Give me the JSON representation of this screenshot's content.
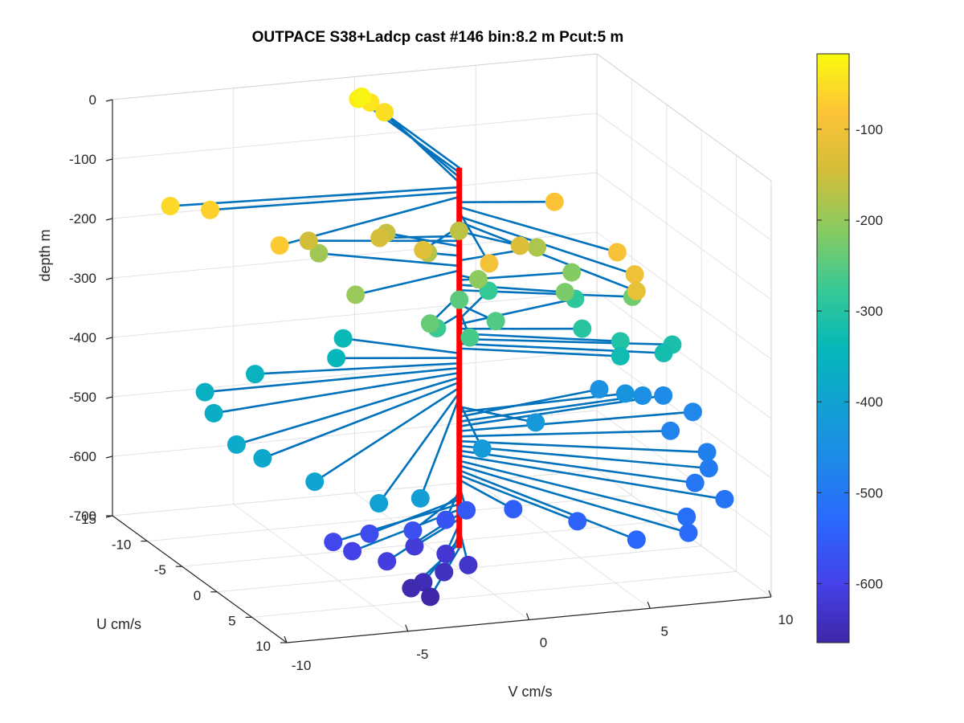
{
  "chart_data": {
    "type": "scatter",
    "title": "OUTPACE S38+Ladcp cast #146 bin:8.2 m  Pcut:5 m",
    "xlabel": "V cm/s",
    "ylabel": "U cm/s",
    "zlabel": "depth m",
    "xlim": [
      -10,
      10
    ],
    "ylim": [
      -15,
      10
    ],
    "zlim": [
      -700,
      0
    ],
    "x_ticks": [
      "-10",
      "-5",
      "0",
      "5",
      "10"
    ],
    "y_ticks": [
      "-15",
      "-10",
      "-5",
      "0",
      "5",
      "10"
    ],
    "z_ticks": [
      "0",
      "-100",
      "-200",
      "-300",
      "-400",
      "-500",
      "-600",
      "-700"
    ],
    "colorbar": {
      "ticks": [
        "-100",
        "-200",
        "-300",
        "-400",
        "-500",
        "-600"
      ],
      "range": [
        -665,
        -17
      ],
      "colormap": "parula"
    },
    "grid": true,
    "profile_line_color": "#ff0000",
    "stick_color": "#0072bd",
    "points": [
      {
        "depth": -25,
        "v": 0.0,
        "u": -14.0
      },
      {
        "depth": -33,
        "v": 0.0,
        "u": -14.5
      },
      {
        "depth": -41,
        "v": 0.5,
        "u": -14.5
      },
      {
        "depth": -50,
        "v": 0.8,
        "u": -13.5
      },
      {
        "depth": -58,
        "v": -11.5,
        "u": -1.5
      },
      {
        "depth": -66,
        "v": -10.0,
        "u": -1.0
      },
      {
        "depth": -74,
        "v": -9.0,
        "u": 5.5
      },
      {
        "depth": -83,
        "v": 3.5,
        "u": 1.5
      },
      {
        "depth": -91,
        "v": 3.5,
        "u": 10.5
      },
      {
        "depth": -99,
        "v": -1.5,
        "u": 9.5
      },
      {
        "depth": -107,
        "v": 3.5,
        "u": 13.0
      },
      {
        "depth": -116,
        "v": 3.0,
        "u": 15.0
      },
      {
        "depth": -124,
        "v": -2.5,
        "u": 3.5
      },
      {
        "depth": -132,
        "v": 1.5,
        "u": 3.5
      },
      {
        "depth": -140,
        "v": -3.0,
        "u": -1.0
      },
      {
        "depth": -148,
        "v": -5.5,
        "u": -2.5
      },
      {
        "depth": -157,
        "v": -2.0,
        "u": -3.5
      },
      {
        "depth": -165,
        "v": 1.0,
        "u": -3.5
      },
      {
        "depth": -173,
        "v": -1.0,
        "u": -1.0
      },
      {
        "depth": -181,
        "v": 3.5,
        "u": -1.0
      },
      {
        "depth": -190,
        "v": -4.5,
        "u": -4.5
      },
      {
        "depth": -198,
        "v": -5.0,
        "u": 2.5
      },
      {
        "depth": -206,
        "v": 0.5,
        "u": 1.0
      },
      {
        "depth": -214,
        "v": 4.5,
        "u": 0.5
      },
      {
        "depth": -222,
        "v": 3.5,
        "u": 3.0
      },
      {
        "depth": -231,
        "v": 6.0,
        "u": 4.0
      },
      {
        "depth": -239,
        "v": -2.5,
        "u": 4.5
      },
      {
        "depth": -247,
        "v": 0.0,
        "u": 0.0
      },
      {
        "depth": -255,
        "v": 0.5,
        "u": 3.5
      },
      {
        "depth": -264,
        "v": -1.0,
        "u": 5.0
      },
      {
        "depth": -272,
        "v": -1.5,
        "u": 2.0
      },
      {
        "depth": -280,
        "v": 2.5,
        "u": -4.5
      },
      {
        "depth": -288,
        "v": 5.5,
        "u": -2.5
      },
      {
        "depth": -296,
        "v": 4.5,
        "u": 2.0
      },
      {
        "depth": -304,
        "v": 5.5,
        "u": 4.0
      },
      {
        "depth": -313,
        "v": 7.5,
        "u": 4.5
      },
      {
        "depth": -321,
        "v": 7.0,
        "u": 5.0
      },
      {
        "depth": -329,
        "v": 5.5,
        "u": 4.0
      },
      {
        "depth": -337,
        "v": -3.5,
        "u": -4.5
      },
      {
        "depth": -345,
        "v": -4.5,
        "u": -2.0
      },
      {
        "depth": -354,
        "v": -8.0,
        "u": -1.5
      },
      {
        "depth": -362,
        "v": -10.5,
        "u": 0.0
      },
      {
        "depth": -370,
        "v": -11.0,
        "u": 3.0
      },
      {
        "depth": -378,
        "v": -11.5,
        "u": 8.0
      },
      {
        "depth": -386,
        "v": -11.0,
        "u": 10.0
      },
      {
        "depth": -395,
        "v": -10.0,
        "u": 14.0
      },
      {
        "depth": -403,
        "v": -8.5,
        "u": 18.0
      },
      {
        "depth": -411,
        "v": -6.5,
        "u": 17.0
      },
      {
        "depth": -419,
        "v": -1.5,
        "u": 8.5
      },
      {
        "depth": -427,
        "v": 2.0,
        "u": 4.0
      },
      {
        "depth": -436,
        "v": 7.0,
        "u": -0.5
      },
      {
        "depth": -444,
        "v": 6.5,
        "u": -2.5
      },
      {
        "depth": -452,
        "v": 8.0,
        "u": -1.5
      },
      {
        "depth": -460,
        "v": 9.0,
        "u": -2.0
      },
      {
        "depth": -468,
        "v": 9.5,
        "u": 0.5
      },
      {
        "depth": -477,
        "v": 8.0,
        "u": 2.5
      },
      {
        "depth": -485,
        "v": 8.5,
        "u": 6.0
      },
      {
        "depth": -493,
        "v": 8.0,
        "u": 8.0
      },
      {
        "depth": -501,
        "v": 7.0,
        "u": 9.5
      },
      {
        "depth": -509,
        "v": 7.5,
        "u": 12.0
      },
      {
        "depth": -518,
        "v": 5.5,
        "u": 13.5
      },
      {
        "depth": -526,
        "v": 5.0,
        "u": 15.5
      },
      {
        "depth": -534,
        "v": 3.0,
        "u": 15.0
      },
      {
        "depth": -542,
        "v": 2.0,
        "u": 10.0
      },
      {
        "depth": -550,
        "v": 0.5,
        "u": 6.0
      },
      {
        "depth": -559,
        "v": -1.0,
        "u": 4.5
      },
      {
        "depth": -567,
        "v": -2.0,
        "u": 5.0
      },
      {
        "depth": -575,
        "v": -3.5,
        "u": 5.5
      },
      {
        "depth": -583,
        "v": -5.0,
        "u": 4.5
      },
      {
        "depth": -591,
        "v": -6.5,
        "u": 4.5
      },
      {
        "depth": -600,
        "v": -6.0,
        "u": 5.5
      },
      {
        "depth": -608,
        "v": -5.0,
        "u": 7.0
      },
      {
        "depth": -616,
        "v": -3.0,
        "u": 4.0
      },
      {
        "depth": -624,
        "v": -2.0,
        "u": 5.0
      },
      {
        "depth": -632,
        "v": -1.5,
        "u": 6.5
      },
      {
        "depth": -640,
        "v": -2.5,
        "u": 6.5
      },
      {
        "depth": -649,
        "v": -3.5,
        "u": 7.0
      },
      {
        "depth": -657,
        "v": -4.0,
        "u": 7.0
      },
      {
        "depth": -665,
        "v": -3.5,
        "u": 8.0
      }
    ]
  }
}
